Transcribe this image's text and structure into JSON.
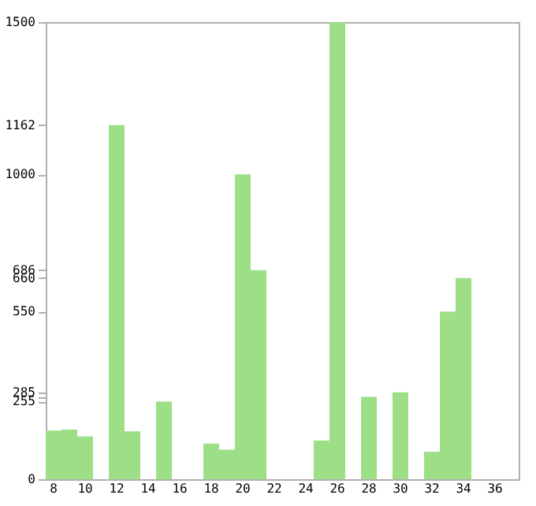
{
  "chart_data": {
    "type": "bar",
    "categories": [
      "8",
      null,
      "10",
      null,
      "12",
      null,
      "14",
      null,
      "16",
      null,
      "18",
      null,
      "20",
      null,
      "22",
      null,
      "24",
      null,
      "26",
      null,
      "28",
      null,
      "30",
      null,
      "32",
      null,
      "34",
      null,
      "36",
      null
    ],
    "values": [
      160,
      163,
      140,
      0,
      1162,
      157,
      0,
      255,
      0,
      0,
      117,
      97,
      1000,
      686,
      0,
      0,
      0,
      127,
      1500,
      0,
      270,
      0,
      285,
      0,
      90,
      550,
      660,
      0,
      0,
      0
    ],
    "color": "#9ddf87",
    "ylim": [
      0,
      1500
    ],
    "yticks": [
      0,
      255,
      {
        "value": 270,
        "label": null
      },
      285,
      550,
      660,
      686,
      1000,
      1162,
      1500
    ],
    "grid": false
  }
}
